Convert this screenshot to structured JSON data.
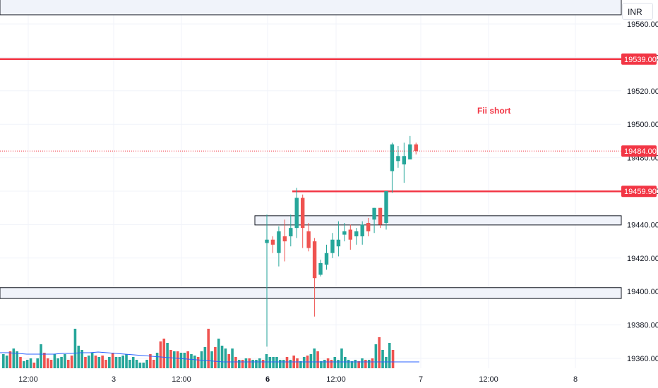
{
  "currency": "INR",
  "colors": {
    "up": "#26a69a",
    "down": "#ef5350",
    "volume_up": "#26a69a",
    "volume_down": "#ef5350",
    "ma": "#2962ff",
    "level": "#f23645",
    "zone_border": "#131722",
    "zone_fill": "#f0f3fa"
  },
  "chart_data": {
    "type": "candlestick",
    "title": "",
    "ylim": [
      19356,
      19580
    ],
    "y_ticks": [
      "19360.00",
      "19380.00",
      "19400.00",
      "19420.00",
      "19440.00",
      "19460.00",
      "19480.00",
      "19500.00",
      "19520.00",
      "19540.00",
      "19560.00"
    ],
    "x_labels": [
      "12:00",
      "3",
      "12:00",
      "6",
      "12:00",
      "7",
      "12:00",
      "8"
    ],
    "grid": true,
    "price_labels": [
      "19539.00",
      "19484.00",
      "19459.90"
    ],
    "horizontal_levels": [
      19539.0,
      19459.9
    ],
    "zones": [
      {
        "low": 19439.8,
        "high": 19445.3
      },
      {
        "low": 19395.8,
        "high": 19402.3
      },
      {
        "low": 19565.5,
        "high": 19579.0
      }
    ],
    "annotation": "Fii short",
    "candles": [
      {
        "open": 19429,
        "high": 19446,
        "low": 19367,
        "close": 19431
      },
      {
        "open": 19431,
        "high": 19433,
        "low": 19423,
        "close": 19428
      },
      {
        "open": 19423,
        "high": 19439,
        "low": 19415,
        "close": 19436
      },
      {
        "open": 19433,
        "high": 19443,
        "low": 19418,
        "close": 19430
      },
      {
        "open": 19433,
        "high": 19446,
        "low": 19427,
        "close": 19438
      },
      {
        "open": 19438,
        "high": 19462,
        "low": 19432,
        "close": 19456
      },
      {
        "open": 19456,
        "high": 19458,
        "low": 19426,
        "close": 19438
      },
      {
        "open": 19436,
        "high": 19441,
        "low": 19424,
        "close": 19426
      },
      {
        "open": 19430,
        "high": 19432,
        "low": 19385,
        "close": 19408
      },
      {
        "open": 19410,
        "high": 19419,
        "low": 19409,
        "close": 19417
      },
      {
        "open": 19416,
        "high": 19428,
        "low": 19413,
        "close": 19423
      },
      {
        "open": 19423,
        "high": 19435,
        "low": 19420,
        "close": 19431
      },
      {
        "open": 19427,
        "high": 19442,
        "low": 19421,
        "close": 19431
      },
      {
        "open": 19434,
        "high": 19441,
        "low": 19430,
        "close": 19436
      },
      {
        "open": 19437,
        "high": 19440,
        "low": 19425,
        "close": 19431
      },
      {
        "open": 19433,
        "high": 19438,
        "low": 19428,
        "close": 19436
      },
      {
        "open": 19433,
        "high": 19442,
        "low": 19428,
        "close": 19440
      },
      {
        "open": 19441,
        "high": 19444,
        "low": 19433,
        "close": 19436
      },
      {
        "open": 19443,
        "high": 19449,
        "low": 19435,
        "close": 19450
      },
      {
        "open": 19450,
        "high": 19449,
        "low": 19438,
        "close": 19440
      },
      {
        "open": 19441,
        "high": 19460,
        "low": 19437,
        "close": 19460
      },
      {
        "open": 19472,
        "high": 19489,
        "low": 19459,
        "close": 19488
      },
      {
        "open": 19478,
        "high": 19487,
        "low": 19474,
        "close": 19481
      },
      {
        "open": 19476,
        "high": 19489,
        "low": 19465,
        "close": 19481
      },
      {
        "open": 19479,
        "high": 19493,
        "low": 19479,
        "close": 19488
      },
      {
        "open": 19488,
        "high": 19489,
        "low": 19482,
        "close": 19484
      }
    ],
    "volume": [
      {
        "side": "up",
        "value": 10
      },
      {
        "side": "up",
        "value": 9
      },
      {
        "side": "down",
        "value": 12
      },
      {
        "side": "up",
        "value": 14
      },
      {
        "side": "up",
        "value": 12
      },
      {
        "side": "down",
        "value": 8
      },
      {
        "side": "up",
        "value": 5
      },
      {
        "side": "up",
        "value": 6
      },
      {
        "side": "up",
        "value": 7
      },
      {
        "side": "down",
        "value": 4
      },
      {
        "side": "up",
        "value": 7
      },
      {
        "side": "up",
        "value": 17
      },
      {
        "side": "down",
        "value": 11
      },
      {
        "side": "down",
        "value": 7
      },
      {
        "side": "down",
        "value": 6
      },
      {
        "side": "up",
        "value": 10
      },
      {
        "side": "up",
        "value": 7
      },
      {
        "side": "up",
        "value": 8
      },
      {
        "side": "up",
        "value": 10
      },
      {
        "side": "down",
        "value": 6
      },
      {
        "side": "down",
        "value": 9
      },
      {
        "side": "up",
        "value": 28
      },
      {
        "side": "up",
        "value": 16
      },
      {
        "side": "up",
        "value": 13
      },
      {
        "side": "down",
        "value": 8
      },
      {
        "side": "up",
        "value": 9
      },
      {
        "side": "up",
        "value": 11
      },
      {
        "side": "down",
        "value": 9
      },
      {
        "side": "up",
        "value": 8
      },
      {
        "side": "down",
        "value": 9
      },
      {
        "side": "down",
        "value": 6
      },
      {
        "side": "up",
        "value": 8
      },
      {
        "side": "down",
        "value": 11
      },
      {
        "side": "up",
        "value": 8
      },
      {
        "side": "up",
        "value": 8
      },
      {
        "side": "up",
        "value": 9
      },
      {
        "side": "up",
        "value": 10
      },
      {
        "side": "up",
        "value": 6
      },
      {
        "side": "up",
        "value": 8
      },
      {
        "side": "up",
        "value": 6
      },
      {
        "side": "up",
        "value": 4
      },
      {
        "side": "up",
        "value": 4
      },
      {
        "side": "up",
        "value": 6
      },
      {
        "side": "down",
        "value": 10
      },
      {
        "side": "down",
        "value": 6
      },
      {
        "side": "up",
        "value": 11
      },
      {
        "side": "down",
        "value": 19
      },
      {
        "side": "down",
        "value": 21
      },
      {
        "side": "up",
        "value": 18
      },
      {
        "side": "down",
        "value": 13
      },
      {
        "side": "up",
        "value": 12
      },
      {
        "side": "down",
        "value": 12
      },
      {
        "side": "up",
        "value": 11
      },
      {
        "side": "up",
        "value": 11
      },
      {
        "side": "down",
        "value": 12
      },
      {
        "side": "up",
        "value": 10
      },
      {
        "side": "up",
        "value": 9
      },
      {
        "side": "down",
        "value": 8
      },
      {
        "side": "up",
        "value": 12
      },
      {
        "side": "up",
        "value": 15
      },
      {
        "side": "down",
        "value": 28
      },
      {
        "side": "up",
        "value": 12
      },
      {
        "side": "down",
        "value": 15
      },
      {
        "side": "up",
        "value": 21
      },
      {
        "side": "up",
        "value": 16
      },
      {
        "side": "up",
        "value": 14
      },
      {
        "side": "down",
        "value": 10
      },
      {
        "side": "up",
        "value": 14
      },
      {
        "side": "down",
        "value": 8
      },
      {
        "side": "up",
        "value": 6
      },
      {
        "side": "down",
        "value": 6
      },
      {
        "side": "up",
        "value": 7
      },
      {
        "side": "down",
        "value": 7
      },
      {
        "side": "up",
        "value": 6
      },
      {
        "side": "up",
        "value": 6
      },
      {
        "side": "up",
        "value": 7
      },
      {
        "side": "down",
        "value": 6
      },
      {
        "side": "up",
        "value": 10
      },
      {
        "side": "up",
        "value": 8
      },
      {
        "side": "up",
        "value": 8
      },
      {
        "side": "up",
        "value": 8
      },
      {
        "side": "up",
        "value": 6
      },
      {
        "side": "up",
        "value": 6
      },
      {
        "side": "down",
        "value": 8
      },
      {
        "side": "up",
        "value": 6
      },
      {
        "side": "down",
        "value": 9
      },
      {
        "side": "down",
        "value": 7
      },
      {
        "side": "up",
        "value": 5
      },
      {
        "side": "up",
        "value": 8
      },
      {
        "side": "down",
        "value": 9
      },
      {
        "side": "up",
        "value": 10
      },
      {
        "side": "up",
        "value": 14
      },
      {
        "side": "down",
        "value": 12
      },
      {
        "side": "up",
        "value": 5
      },
      {
        "side": "up",
        "value": 6
      },
      {
        "side": "down",
        "value": 7
      },
      {
        "side": "down",
        "value": 6
      },
      {
        "side": "up",
        "value": 8
      },
      {
        "side": "up",
        "value": 6
      },
      {
        "side": "up",
        "value": 14
      },
      {
        "side": "up",
        "value": 8
      },
      {
        "side": "up",
        "value": 6
      },
      {
        "side": "up",
        "value": 5
      },
      {
        "side": "up",
        "value": 6
      },
      {
        "side": "down",
        "value": 5
      },
      {
        "side": "up",
        "value": 7
      },
      {
        "side": "down",
        "value": 6
      },
      {
        "side": "up",
        "value": 6
      },
      {
        "side": "down",
        "value": 7
      },
      {
        "side": "up",
        "value": 17
      },
      {
        "side": "down",
        "value": 22
      },
      {
        "side": "up",
        "value": 13
      },
      {
        "side": "up",
        "value": 8
      },
      {
        "side": "up",
        "value": 18
      },
      {
        "side": "down",
        "value": 13
      }
    ],
    "volume_ma": [
      11,
      11,
      10.5,
      10,
      10,
      10,
      10,
      10.5,
      10.5,
      11,
      11,
      11.5,
      11,
      10.5,
      10,
      9.5,
      9,
      8.5,
      8,
      7.5,
      7,
      6.5,
      6,
      5.5,
      5,
      4.5,
      4.5,
      4.5,
      4.5,
      4.5,
      4.5,
      4.5,
      4.5,
      4.5,
      4.5,
      4.5,
      4.5,
      4.5,
      4.5,
      4.5,
      4.5,
      4.5,
      4.5,
      4.5,
      4.5,
      4.5,
      4.5,
      4.5
    ]
  }
}
